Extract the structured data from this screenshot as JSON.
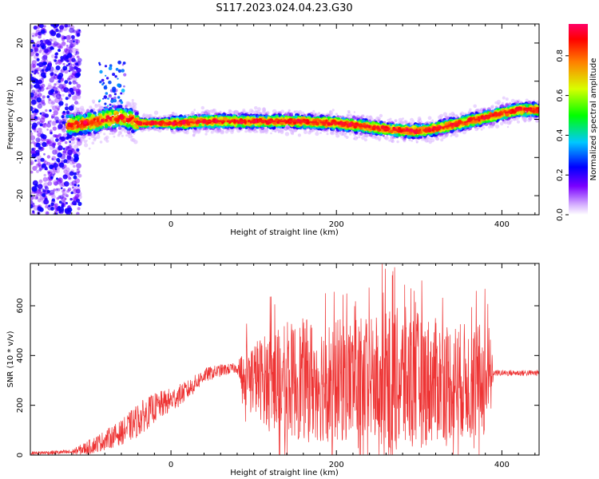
{
  "title": "S117.2023.024.04.23.G30",
  "chart_data": [
    {
      "type": "heatmap",
      "xlabel": "Height of straight line (km)",
      "ylabel": "Frequency (Hz)",
      "xlim": [
        -170,
        445
      ],
      "ylim": [
        -25,
        25
      ],
      "x_ticks": [
        0,
        200,
        400
      ],
      "y_ticks": [
        -20,
        -10,
        0,
        10,
        20
      ],
      "ridge": {
        "x": [
          -120,
          -100,
          -80,
          -60,
          -50,
          -40,
          0,
          50,
          100,
          150,
          200,
          240,
          260,
          280,
          300,
          320,
          340,
          360,
          380,
          400,
          420,
          445
        ],
        "frequency": [
          -1.5,
          -1,
          0,
          0.5,
          0,
          -1,
          -1,
          -0.5,
          -0.5,
          -0.5,
          -1,
          -2,
          -2.5,
          -3,
          -3,
          -2.5,
          -1.5,
          -0.5,
          0.5,
          1.5,
          2.5,
          2.5
        ]
      },
      "colorbar": {
        "label": "Normalized spectral amplitude",
        "range": [
          0,
          1
        ],
        "ticks": [
          "0.0",
          "0.2",
          "0.4",
          "0.6",
          "0.8"
        ]
      }
    },
    {
      "type": "line",
      "xlabel": "Height of straight line (km)",
      "ylabel": "SNR (10 * v/v)",
      "xlim": [
        -170,
        445
      ],
      "ylim": [
        0,
        770
      ],
      "x_ticks": [
        0,
        200,
        400
      ],
      "y_ticks": [
        0,
        200,
        400,
        600
      ],
      "color": "#ee3333",
      "envelope": {
        "x": [
          -170,
          -120,
          -100,
          -80,
          -60,
          -40,
          -20,
          0,
          20,
          40,
          60,
          80,
          90,
          120,
          160,
          200,
          240,
          280,
          320,
          360,
          385,
          390,
          445
        ],
        "baseline": [
          8,
          12,
          30,
          60,
          90,
          140,
          190,
          220,
          260,
          320,
          340,
          350,
          320,
          300,
          300,
          300,
          300,
          300,
          300,
          300,
          300,
          330,
          330
        ],
        "amplitude": [
          6,
          10,
          30,
          40,
          50,
          70,
          60,
          50,
          40,
          30,
          25,
          20,
          120,
          200,
          250,
          250,
          250,
          300,
          250,
          230,
          230,
          12,
          12
        ]
      }
    }
  ]
}
